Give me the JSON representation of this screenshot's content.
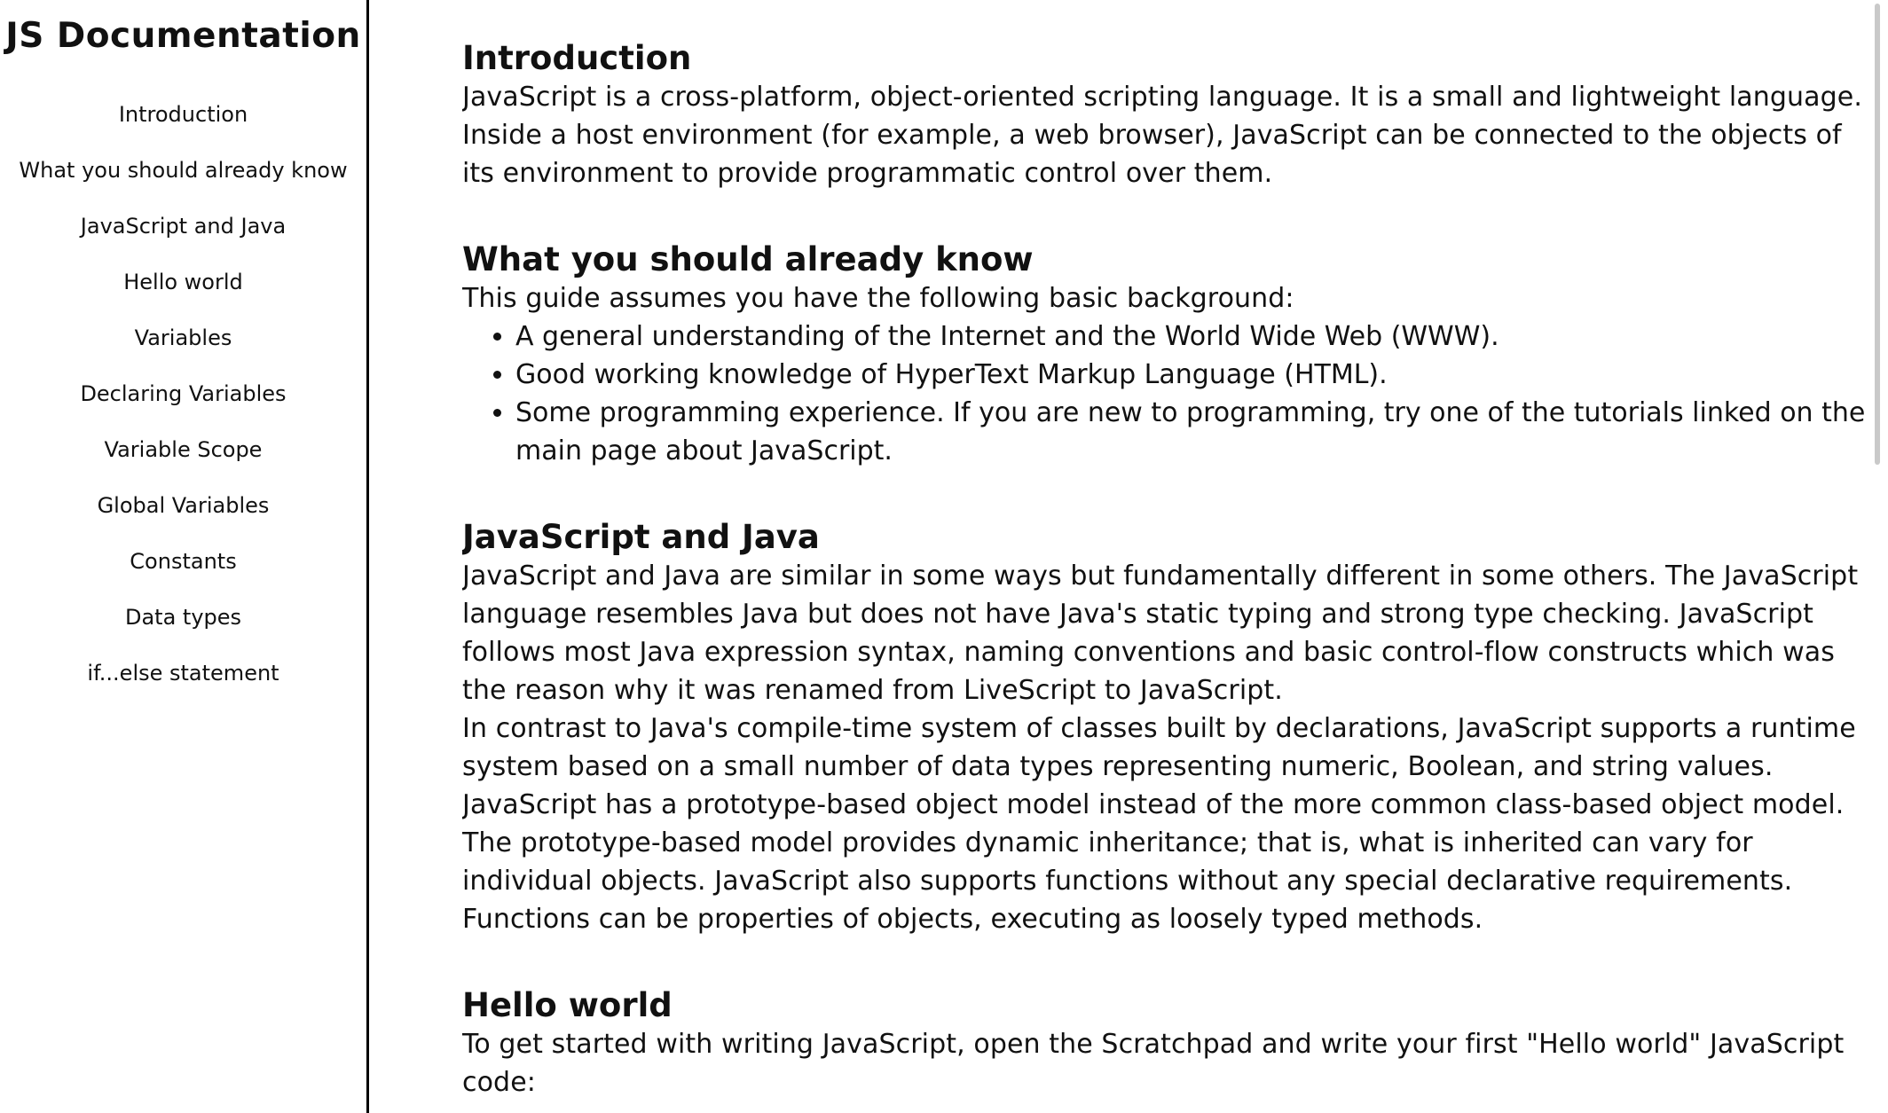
{
  "nav": {
    "title": "JS Documentation",
    "items": [
      {
        "label": "Introduction"
      },
      {
        "label": "What you should already know"
      },
      {
        "label": "JavaScript and Java"
      },
      {
        "label": "Hello world"
      },
      {
        "label": "Variables"
      },
      {
        "label": "Declaring Variables"
      },
      {
        "label": "Variable Scope"
      },
      {
        "label": "Global Variables"
      },
      {
        "label": "Constants"
      },
      {
        "label": "Data types"
      },
      {
        "label": "if...else statement"
      }
    ]
  },
  "main": {
    "introduction": {
      "heading": "Introduction",
      "paragraph": "JavaScript is a cross-platform, object-oriented scripting language. It is a small and lightweight language. Inside a host environment (for example, a web browser), JavaScript can be connected to the objects of its environment to provide programmatic control over them."
    },
    "what_you_should_know": {
      "heading": "What you should already know",
      "paragraph": "This guide assumes you have the following basic background:",
      "bullets": [
        "A general understanding of the Internet and the World Wide Web (WWW).",
        "Good working knowledge of HyperText Markup Language (HTML).",
        "Some programming experience. If you are new to programming, try one of the tutorials linked on the main page about JavaScript."
      ]
    },
    "javascript_and_java": {
      "heading": "JavaScript and Java",
      "paragraph1": "JavaScript and Java are similar in some ways but fundamentally different in some others. The JavaScript language resembles Java but does not have Java's static typing and strong type checking. JavaScript follows most Java expression syntax, naming conventions and basic control-flow constructs which was the reason why it was renamed from LiveScript to JavaScript.",
      "paragraph2": "In contrast to Java's compile-time system of classes built by declarations, JavaScript supports a runtime system based on a small number of data types representing numeric, Boolean, and string values. JavaScript has a prototype-based object model instead of the more common class-based object model. The prototype-based model provides dynamic inheritance; that is, what is inherited can vary for individual objects. JavaScript also supports functions without any special declarative requirements. Functions can be properties of objects, executing as loosely typed methods."
    },
    "hello_world": {
      "heading": "Hello world",
      "paragraph": "To get started with writing JavaScript, open the Scratchpad and write your first \"Hello world\" JavaScript code:"
    }
  }
}
